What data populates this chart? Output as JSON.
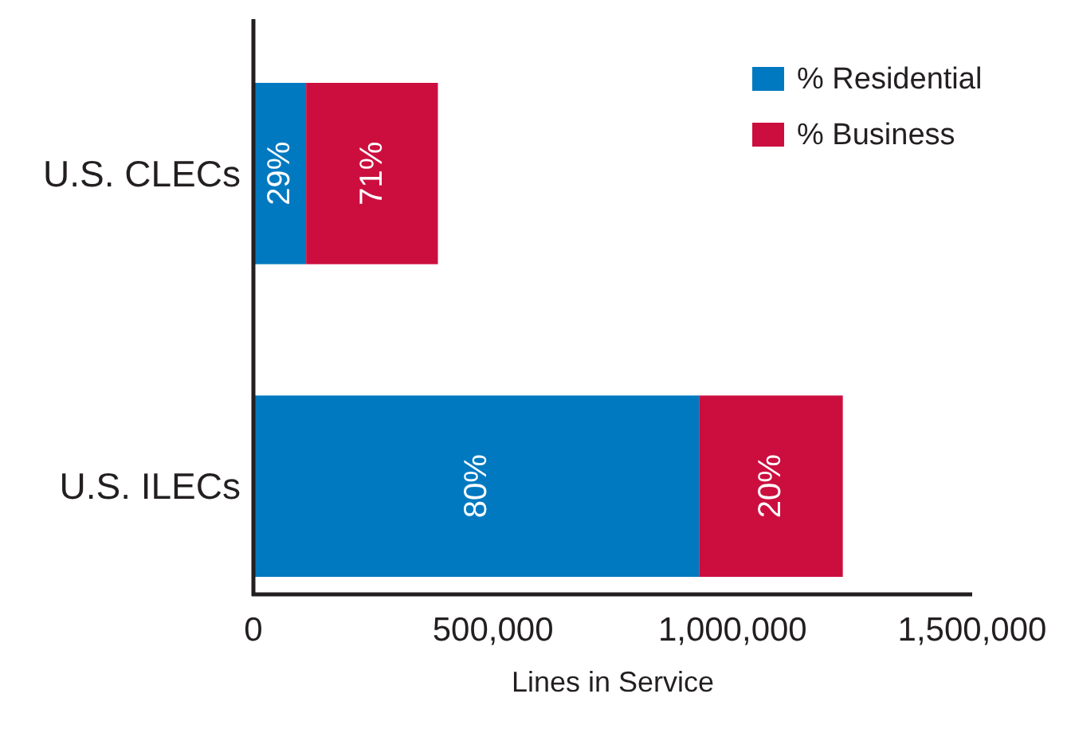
{
  "chart_data": {
    "type": "bar",
    "orientation": "horizontal",
    "stacked": true,
    "xlabel": "Lines in Service",
    "categories": [
      "U.S. CLECs",
      "U.S. ILECs"
    ],
    "series": [
      {
        "name": "% Residential",
        "color": "#0079c1",
        "values": [
          110000,
          930000
        ]
      },
      {
        "name": "% Business",
        "color": "#cc0e3f",
        "values": [
          275000,
          300000
        ]
      }
    ],
    "annotations": [
      "29%",
      "71%",
      "80%",
      "20%"
    ],
    "xlim": [
      0,
      1500000
    ],
    "xticks": [
      {
        "value": 0,
        "label": "0"
      },
      {
        "value": 500000,
        "label": "500,000"
      },
      {
        "value": 1000000,
        "label": "1,000,000"
      },
      {
        "value": 1500000,
        "label": "1,500,000"
      }
    ],
    "grid": false,
    "legend": "top right"
  }
}
